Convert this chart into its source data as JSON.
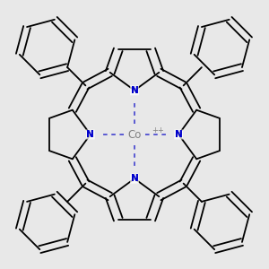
{
  "background_color": "#e8e8e8",
  "bond_color": "#000000",
  "nitrogen_color": "#0000cc",
  "cobalt_color": "#808080",
  "cobalt_charge": "++",
  "nitrogen_label": "N",
  "cobalt_label": "Co",
  "bond_width": 1.3,
  "figsize": [
    3.0,
    3.0
  ],
  "dpi": 100
}
